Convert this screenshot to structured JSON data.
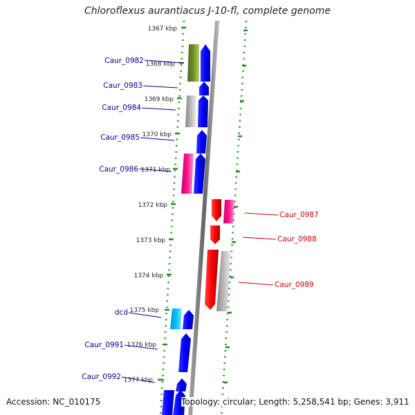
{
  "title": "Chloroflexus aurantiacus J-10-fl, complete genome",
  "footer": {
    "accession": "Accession: NC_010175",
    "topology": "Topology: circular; Length: 5,258,541 bp; Genes: 3,911"
  },
  "kbp_ticks": [
    "1367 kbp",
    "1368 kbp",
    "1369 kbp",
    "1370 kbp",
    "1371 kbp",
    "1372 kbp",
    "1373 kbp",
    "1374 kbp",
    "1375 kbp",
    "1376 kbp",
    "1377 kbp"
  ],
  "genes_left": [
    {
      "label": "Caur_0982",
      "color": "#000099"
    },
    {
      "label": "Caur_0983",
      "color": "#000099"
    },
    {
      "label": "Caur_0984",
      "color": "#000099"
    },
    {
      "label": "Caur_0985",
      "color": "#000099"
    },
    {
      "label": "Caur_0986",
      "color": "#000099"
    },
    {
      "label": "dcd",
      "color": "#000099"
    },
    {
      "label": "Caur_0991",
      "color": "#000099"
    },
    {
      "label": "Caur_0992",
      "color": "#000099"
    }
  ],
  "genes_right": [
    {
      "label": "Caur_0987",
      "color": "#cc0000"
    },
    {
      "label": "Caur_0988",
      "color": "#cc0000"
    },
    {
      "label": "Caur_0989",
      "color": "#cc0000"
    }
  ],
  "colors": {
    "forward_strand": "#0000ff",
    "reverse_strand": "#ff0000",
    "backbone": "#888888",
    "ring_dots": "#228b22",
    "cog_green": "#6b8e23",
    "cog_grey": "#aaaaaa",
    "cog_pink": "#ff1493",
    "cog_cyan": "#00bfff"
  }
}
